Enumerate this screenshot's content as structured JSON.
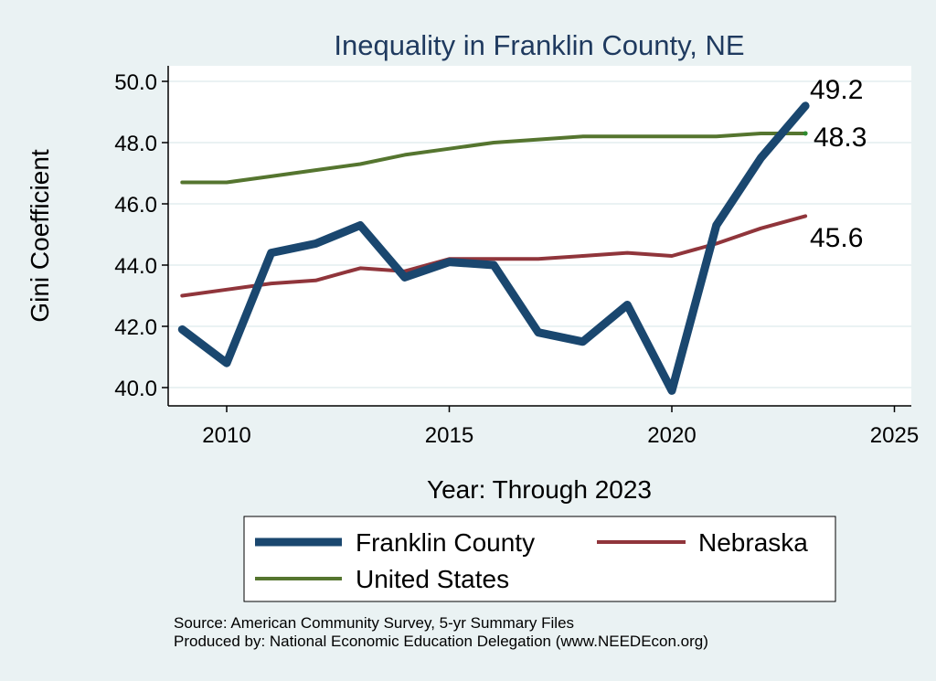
{
  "chart_data": {
    "type": "line",
    "title": "Inequality in Franklin County, NE",
    "xlabel": "Year: Through 2023",
    "ylabel": "Gini Coefficient",
    "xlim": [
      2009,
      2025
    ],
    "ylim": [
      39.6,
      50.5
    ],
    "xticks": [
      2010,
      2015,
      2020,
      2025
    ],
    "yticks": [
      "40.0",
      "42.0",
      "44.0",
      "46.0",
      "48.0",
      "50.0"
    ],
    "grid": true,
    "legend_position": "bottom",
    "x": [
      2009,
      2010,
      2011,
      2012,
      2013,
      2014,
      2015,
      2016,
      2017,
      2018,
      2019,
      2020,
      2021,
      2022,
      2023
    ],
    "series": [
      {
        "name": "Franklin County",
        "color": "#1a476f",
        "width": 9,
        "values": [
          41.9,
          40.8,
          44.4,
          44.7,
          45.3,
          43.6,
          44.1,
          44.0,
          41.8,
          41.5,
          42.7,
          39.9,
          45.3,
          47.5,
          49.2
        ],
        "end_label": "49.2"
      },
      {
        "name": "Nebraska",
        "color": "#90353b",
        "width": 4,
        "values": [
          43.0,
          43.2,
          43.4,
          43.5,
          43.9,
          43.8,
          44.2,
          44.2,
          44.2,
          44.3,
          44.4,
          44.3,
          44.7,
          45.2,
          45.6
        ],
        "end_label": "45.6"
      },
      {
        "name": "United States",
        "color": "#55752f",
        "width": 4,
        "values": [
          46.7,
          46.7,
          46.9,
          47.1,
          47.3,
          47.6,
          47.8,
          48.0,
          48.1,
          48.2,
          48.2,
          48.2,
          48.2,
          48.3,
          48.3
        ],
        "end_label": "48.3"
      }
    ],
    "notes": [
      "Source: American Community Survey, 5-yr Summary Files",
      "Produced by: National Economic Education Delegation (www.NEEDEcon.org)"
    ]
  }
}
